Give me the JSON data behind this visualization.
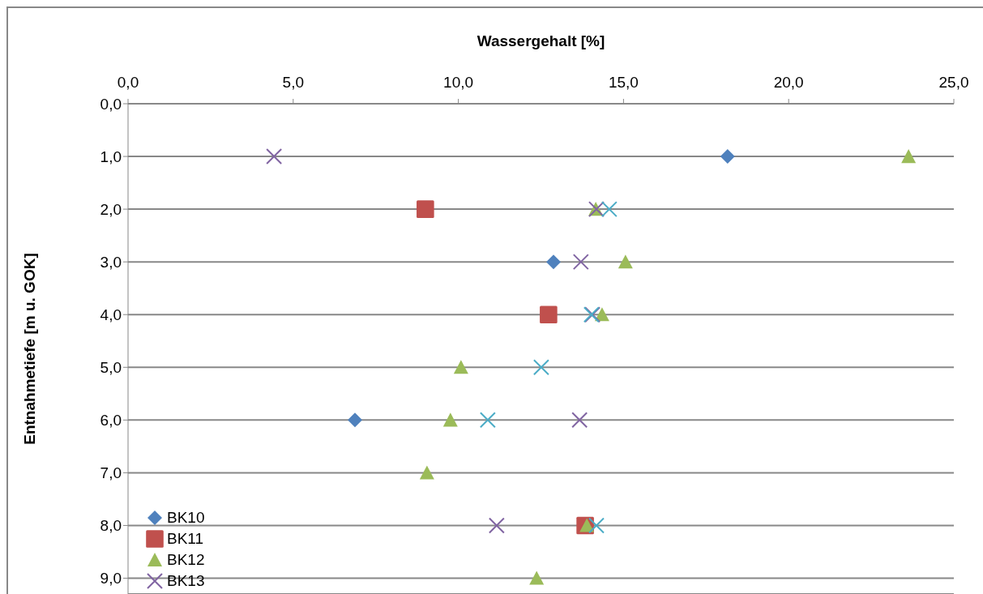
{
  "chart_data": {
    "type": "scatter",
    "xlabel": "Wassergehalt [%]",
    "ylabel": "Entnahmetiefe [m u. GOK]",
    "xlim": [
      0,
      25
    ],
    "ylim": [
      9.3,
      0
    ],
    "xticks": [
      {
        "value": 0,
        "label": "0,0"
      },
      {
        "value": 5,
        "label": "5,0"
      },
      {
        "value": 10,
        "label": "10,0"
      },
      {
        "value": 15,
        "label": "15,0"
      },
      {
        "value": 20,
        "label": "20,0"
      },
      {
        "value": 25,
        "label": "25,0"
      }
    ],
    "yticks": [
      {
        "value": 0,
        "label": "0,0"
      },
      {
        "value": 1,
        "label": "1,0"
      },
      {
        "value": 2,
        "label": "2,0"
      },
      {
        "value": 3,
        "label": "3,0"
      },
      {
        "value": 4,
        "label": "4,0"
      },
      {
        "value": 5,
        "label": "5,0"
      },
      {
        "value": 6,
        "label": "6,0"
      },
      {
        "value": 7,
        "label": "7,0"
      },
      {
        "value": 8,
        "label": "8,0"
      },
      {
        "value": 9,
        "label": "9,0"
      }
    ],
    "grid": "y",
    "legend": "bottom left",
    "series": [
      {
        "name": "BK10",
        "color": "#4f81bd",
        "marker": "diamond",
        "x": [
          18.15,
          12.88,
          6.87
        ],
        "values": [
          1,
          3,
          6
        ]
      },
      {
        "name": "BK11",
        "color": "#c0504d",
        "marker": "square",
        "x": [
          9.0,
          12.73,
          13.84
        ],
        "values": [
          2,
          4,
          8
        ]
      },
      {
        "name": "BK12",
        "color": "#9bbb59",
        "marker": "triangle",
        "x": [
          23.63,
          14.16,
          15.06,
          14.35,
          10.08,
          9.76,
          9.05,
          13.89,
          12.37
        ],
        "values": [
          1,
          2,
          3,
          4,
          5,
          6,
          7,
          8,
          9
        ]
      },
      {
        "name": "BK13",
        "color": "#8064a2",
        "marker": "cross",
        "x": [
          4.42,
          14.18,
          13.71,
          14.06,
          13.67,
          11.16
        ],
        "values": [
          1,
          2,
          3,
          4,
          6,
          8
        ]
      },
      {
        "color": "#4bacc6",
        "marker": "cross",
        "x": [
          14.57,
          14.03,
          12.51,
          10.89,
          14.18
        ],
        "values": [
          2,
          4,
          5,
          6,
          8
        ]
      }
    ]
  }
}
